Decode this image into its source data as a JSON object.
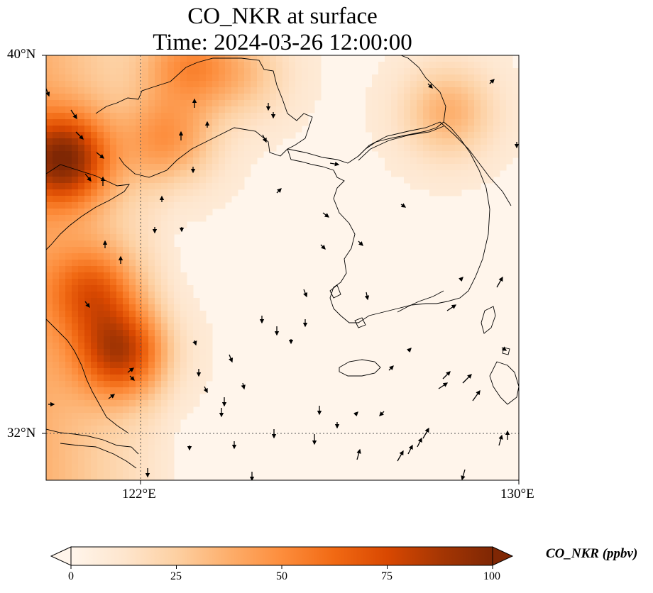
{
  "title": "CO_NKR at surface",
  "subtitle": "Time: 2024-03-26 12:00:00",
  "lat_ticks": [
    {
      "label": "40°N",
      "value": 40
    },
    {
      "label": "32°N",
      "value": 32
    }
  ],
  "lon_ticks": [
    {
      "label": "122°E",
      "value": 122
    },
    {
      "label": "130°E",
      "value": 130
    }
  ],
  "extent": {
    "lon_min": 120,
    "lon_max": 130,
    "lat_min": 31,
    "lat_max": 40
  },
  "colorbar": {
    "label": "CO_NKR (ppbv)",
    "ticks": [
      "0",
      "25",
      "50",
      "75",
      "100"
    ],
    "min": 0,
    "max": 100,
    "extend": "both",
    "colormap": [
      "#fff5eb",
      "#fee6ce",
      "#fdd0a2",
      "#fdae6b",
      "#fd8d3c",
      "#f16913",
      "#d94801",
      "#a63603",
      "#7f2704"
    ],
    "colormap_name": "OrRd"
  },
  "colors": {
    "coast": "#000000",
    "grid": "#555555",
    "arrows": "#000000"
  },
  "chart_data": {
    "type": "heatmap",
    "title": "CO_NKR at surface",
    "subtitle": "Time: 2024-03-26 12:00:00",
    "variable": "CO_NKR",
    "units": "ppbv",
    "xlim": [
      120,
      130
    ],
    "ylim": [
      31,
      40
    ],
    "high_regions": [
      {
        "lon": 120.4,
        "lat": 37.8,
        "value": 85
      },
      {
        "lon": 121.6,
        "lat": 33.7,
        "value": 78
      },
      {
        "lon": 121.0,
        "lat": 35.0,
        "value": 55
      },
      {
        "lon": 122.6,
        "lat": 38.2,
        "value": 48
      },
      {
        "lon": 123.0,
        "lat": 39.8,
        "value": 52
      },
      {
        "lon": 124.2,
        "lat": 39.6,
        "value": 30
      },
      {
        "lon": 128.5,
        "lat": 38.8,
        "value": 40
      }
    ],
    "background_value": 8,
    "wind_vectors": true,
    "gridlines": {
      "lons": [
        122
      ],
      "lats": [
        32
      ],
      "style": "dotted"
    }
  }
}
